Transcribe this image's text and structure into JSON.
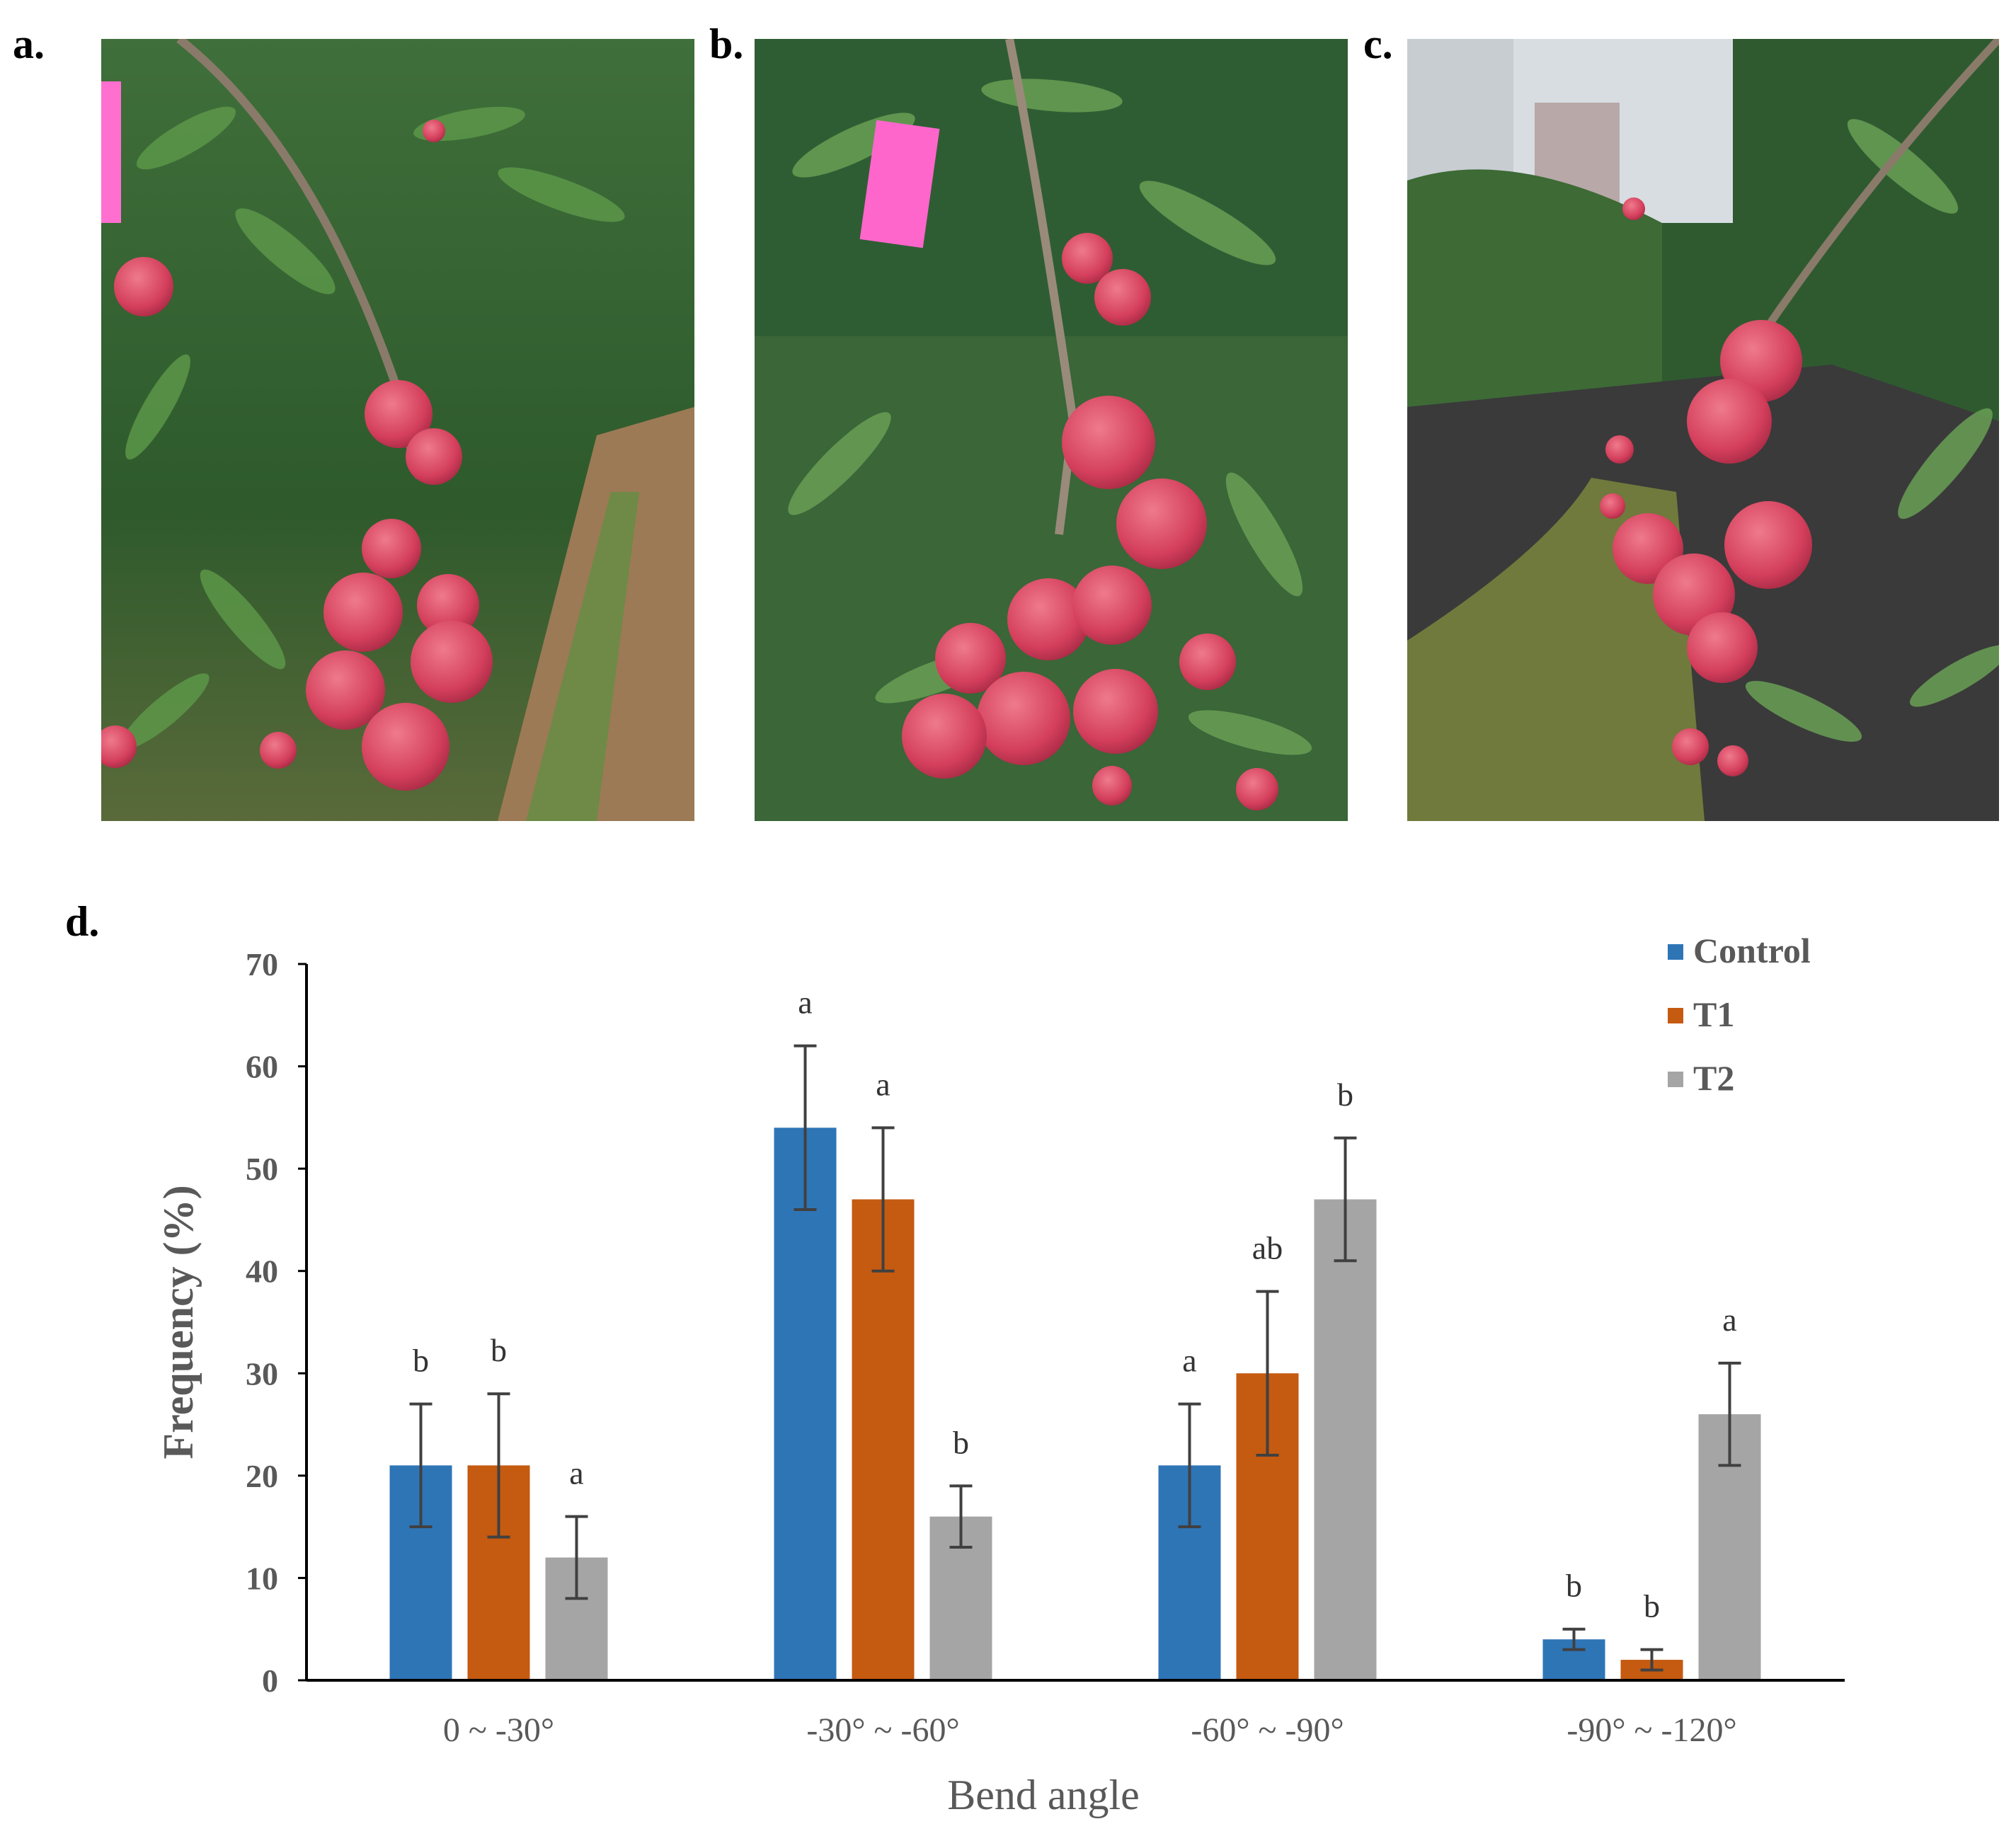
{
  "panels": {
    "a": "a.",
    "b": "b.",
    "c": "c.",
    "d": "d."
  },
  "photos": [
    {
      "panel": "a",
      "subject": "lychee-cluster-photo"
    },
    {
      "panel": "b",
      "subject": "lychee-cluster-photo"
    },
    {
      "panel": "c",
      "subject": "lychee-cluster-photo"
    }
  ],
  "colors": {
    "control": "#2e75b6",
    "t1": "#c55a11",
    "t2": "#a5a5a5",
    "error_bar": "#404040",
    "axis": "#000000"
  },
  "chart_data": {
    "type": "bar",
    "title": "",
    "xlabel": "Bend angle",
    "ylabel": "Frequency (%)",
    "ylim": [
      0,
      70
    ],
    "yticks": [
      0,
      10,
      20,
      30,
      40,
      50,
      60,
      70
    ],
    "categories": [
      "0 ~ -30°",
      "-30° ~ -60°",
      "-60° ~ -90°",
      "-90° ~ -120°"
    ],
    "legend_position": "top-right",
    "series": [
      {
        "name": "Control",
        "color_key": "control",
        "values": [
          21,
          54,
          21,
          4
        ],
        "errors": [
          6,
          8,
          6,
          1
        ],
        "labels": [
          "b",
          "a",
          "a",
          "b"
        ]
      },
      {
        "name": "T1",
        "color_key": "t1",
        "values": [
          21,
          47,
          30,
          2
        ],
        "errors": [
          7,
          7,
          8,
          1
        ],
        "labels": [
          "b",
          "a",
          "ab",
          "b"
        ]
      },
      {
        "name": "T2",
        "color_key": "t2",
        "values": [
          12,
          16,
          47,
          26
        ],
        "errors": [
          4,
          3,
          6,
          5
        ],
        "labels": [
          "a",
          "b",
          "b",
          "a"
        ]
      }
    ]
  }
}
